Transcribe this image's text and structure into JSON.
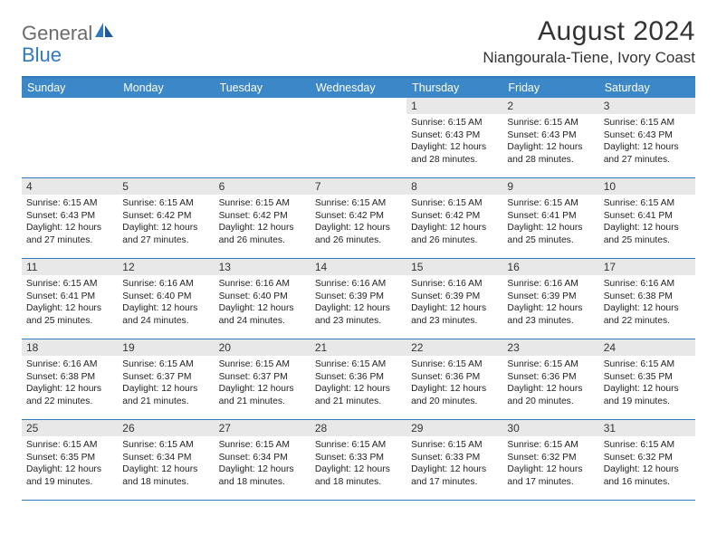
{
  "logo": {
    "text_general": "General",
    "text_blue": "Blue"
  },
  "title": "August 2024",
  "location": "Niangourala-Tiene, Ivory Coast",
  "colors": {
    "header_bar": "#3b87c8",
    "rule": "#2f79bf",
    "daynum_bg": "#e8e8e8",
    "text": "#222222",
    "logo_gray": "#6b6b6b",
    "logo_blue": "#2f79bf"
  },
  "typography": {
    "title_fontsize": 30,
    "location_fontsize": 17,
    "dow_fontsize": 12.5,
    "daynum_fontsize": 12,
    "body_fontsize": 10.3
  },
  "dow": [
    "Sunday",
    "Monday",
    "Tuesday",
    "Wednesday",
    "Thursday",
    "Friday",
    "Saturday"
  ],
  "weeks": [
    [
      {
        "n": "",
        "lines": []
      },
      {
        "n": "",
        "lines": []
      },
      {
        "n": "",
        "lines": []
      },
      {
        "n": "",
        "lines": []
      },
      {
        "n": "1",
        "lines": [
          "Sunrise: 6:15 AM",
          "Sunset: 6:43 PM",
          "Daylight: 12 hours and 28 minutes."
        ]
      },
      {
        "n": "2",
        "lines": [
          "Sunrise: 6:15 AM",
          "Sunset: 6:43 PM",
          "Daylight: 12 hours and 28 minutes."
        ]
      },
      {
        "n": "3",
        "lines": [
          "Sunrise: 6:15 AM",
          "Sunset: 6:43 PM",
          "Daylight: 12 hours and 27 minutes."
        ]
      }
    ],
    [
      {
        "n": "4",
        "lines": [
          "Sunrise: 6:15 AM",
          "Sunset: 6:43 PM",
          "Daylight: 12 hours and 27 minutes."
        ]
      },
      {
        "n": "5",
        "lines": [
          "Sunrise: 6:15 AM",
          "Sunset: 6:42 PM",
          "Daylight: 12 hours and 27 minutes."
        ]
      },
      {
        "n": "6",
        "lines": [
          "Sunrise: 6:15 AM",
          "Sunset: 6:42 PM",
          "Daylight: 12 hours and 26 minutes."
        ]
      },
      {
        "n": "7",
        "lines": [
          "Sunrise: 6:15 AM",
          "Sunset: 6:42 PM",
          "Daylight: 12 hours and 26 minutes."
        ]
      },
      {
        "n": "8",
        "lines": [
          "Sunrise: 6:15 AM",
          "Sunset: 6:42 PM",
          "Daylight: 12 hours and 26 minutes."
        ]
      },
      {
        "n": "9",
        "lines": [
          "Sunrise: 6:15 AM",
          "Sunset: 6:41 PM",
          "Daylight: 12 hours and 25 minutes."
        ]
      },
      {
        "n": "10",
        "lines": [
          "Sunrise: 6:15 AM",
          "Sunset: 6:41 PM",
          "Daylight: 12 hours and 25 minutes."
        ]
      }
    ],
    [
      {
        "n": "11",
        "lines": [
          "Sunrise: 6:15 AM",
          "Sunset: 6:41 PM",
          "Daylight: 12 hours and 25 minutes."
        ]
      },
      {
        "n": "12",
        "lines": [
          "Sunrise: 6:16 AM",
          "Sunset: 6:40 PM",
          "Daylight: 12 hours and 24 minutes."
        ]
      },
      {
        "n": "13",
        "lines": [
          "Sunrise: 6:16 AM",
          "Sunset: 6:40 PM",
          "Daylight: 12 hours and 24 minutes."
        ]
      },
      {
        "n": "14",
        "lines": [
          "Sunrise: 6:16 AM",
          "Sunset: 6:39 PM",
          "Daylight: 12 hours and 23 minutes."
        ]
      },
      {
        "n": "15",
        "lines": [
          "Sunrise: 6:16 AM",
          "Sunset: 6:39 PM",
          "Daylight: 12 hours and 23 minutes."
        ]
      },
      {
        "n": "16",
        "lines": [
          "Sunrise: 6:16 AM",
          "Sunset: 6:39 PM",
          "Daylight: 12 hours and 23 minutes."
        ]
      },
      {
        "n": "17",
        "lines": [
          "Sunrise: 6:16 AM",
          "Sunset: 6:38 PM",
          "Daylight: 12 hours and 22 minutes."
        ]
      }
    ],
    [
      {
        "n": "18",
        "lines": [
          "Sunrise: 6:16 AM",
          "Sunset: 6:38 PM",
          "Daylight: 12 hours and 22 minutes."
        ]
      },
      {
        "n": "19",
        "lines": [
          "Sunrise: 6:15 AM",
          "Sunset: 6:37 PM",
          "Daylight: 12 hours and 21 minutes."
        ]
      },
      {
        "n": "20",
        "lines": [
          "Sunrise: 6:15 AM",
          "Sunset: 6:37 PM",
          "Daylight: 12 hours and 21 minutes."
        ]
      },
      {
        "n": "21",
        "lines": [
          "Sunrise: 6:15 AM",
          "Sunset: 6:36 PM",
          "Daylight: 12 hours and 21 minutes."
        ]
      },
      {
        "n": "22",
        "lines": [
          "Sunrise: 6:15 AM",
          "Sunset: 6:36 PM",
          "Daylight: 12 hours and 20 minutes."
        ]
      },
      {
        "n": "23",
        "lines": [
          "Sunrise: 6:15 AM",
          "Sunset: 6:36 PM",
          "Daylight: 12 hours and 20 minutes."
        ]
      },
      {
        "n": "24",
        "lines": [
          "Sunrise: 6:15 AM",
          "Sunset: 6:35 PM",
          "Daylight: 12 hours and 19 minutes."
        ]
      }
    ],
    [
      {
        "n": "25",
        "lines": [
          "Sunrise: 6:15 AM",
          "Sunset: 6:35 PM",
          "Daylight: 12 hours and 19 minutes."
        ]
      },
      {
        "n": "26",
        "lines": [
          "Sunrise: 6:15 AM",
          "Sunset: 6:34 PM",
          "Daylight: 12 hours and 18 minutes."
        ]
      },
      {
        "n": "27",
        "lines": [
          "Sunrise: 6:15 AM",
          "Sunset: 6:34 PM",
          "Daylight: 12 hours and 18 minutes."
        ]
      },
      {
        "n": "28",
        "lines": [
          "Sunrise: 6:15 AM",
          "Sunset: 6:33 PM",
          "Daylight: 12 hours and 18 minutes."
        ]
      },
      {
        "n": "29",
        "lines": [
          "Sunrise: 6:15 AM",
          "Sunset: 6:33 PM",
          "Daylight: 12 hours and 17 minutes."
        ]
      },
      {
        "n": "30",
        "lines": [
          "Sunrise: 6:15 AM",
          "Sunset: 6:32 PM",
          "Daylight: 12 hours and 17 minutes."
        ]
      },
      {
        "n": "31",
        "lines": [
          "Sunrise: 6:15 AM",
          "Sunset: 6:32 PM",
          "Daylight: 12 hours and 16 minutes."
        ]
      }
    ]
  ]
}
